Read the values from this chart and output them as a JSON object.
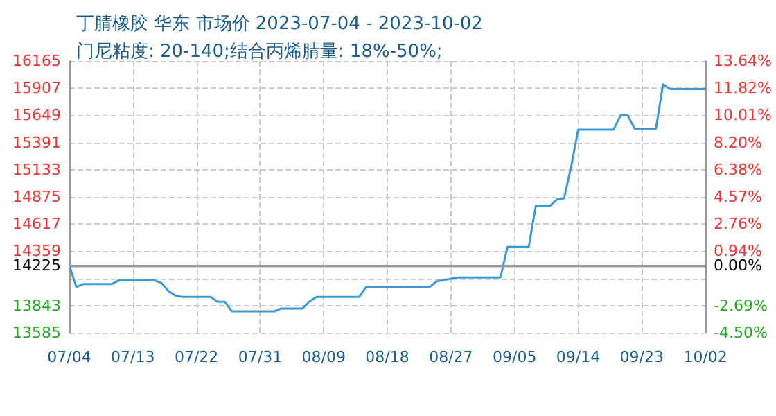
{
  "chart_data": {
    "type": "line",
    "title": "丁腈橡胶 华东 市场价 2023-07-04 - 2023-10-02",
    "subtitle": "门尼粘度: 20-140;结合丙烯腈量: 18%-50%;",
    "x": [
      "2023-07-04",
      "2023-07-05",
      "2023-07-06",
      "2023-07-10",
      "2023-07-11",
      "2023-07-16",
      "2023-07-17",
      "2023-07-18",
      "2023-07-19",
      "2023-07-20",
      "2023-07-24",
      "2023-07-25",
      "2023-07-26",
      "2023-07-27",
      "2023-08-02",
      "2023-08-03",
      "2023-08-06",
      "2023-08-07",
      "2023-08-08",
      "2023-08-14",
      "2023-08-15",
      "2023-08-24",
      "2023-08-25",
      "2023-08-28",
      "2023-09-03",
      "2023-09-04",
      "2023-09-07",
      "2023-09-08",
      "2023-09-10",
      "2023-09-11",
      "2023-09-12",
      "2023-09-13",
      "2023-09-14",
      "2023-09-19",
      "2023-09-20",
      "2023-09-21",
      "2023-09-22",
      "2023-09-25",
      "2023-09-26",
      "2023-09-27",
      "2023-10-02"
    ],
    "series": [
      {
        "color": "#3a9ad9",
        "values": [
          14225,
          14020,
          14047,
          14047,
          14083,
          14083,
          14060,
          13983,
          13938,
          13925,
          13925,
          13880,
          13880,
          13789,
          13789,
          13816,
          13816,
          13884,
          13925,
          13925,
          14020,
          14020,
          14074,
          14110,
          14110,
          14400,
          14400,
          14789,
          14789,
          14852,
          14861,
          15160,
          15513,
          15513,
          15649,
          15649,
          15522,
          15522,
          15943,
          15898,
          15898
        ]
      }
    ],
    "xlim": [
      "2023-07-04",
      "2023-10-02"
    ],
    "xticks": [
      {
        "value": "2023-07-04",
        "label": "07/04"
      },
      {
        "value": "2023-07-13",
        "label": "07/13"
      },
      {
        "value": "2023-07-22",
        "label": "07/22"
      },
      {
        "value": "2023-07-31",
        "label": "07/31"
      },
      {
        "value": "2023-08-09",
        "label": "08/09"
      },
      {
        "value": "2023-08-18",
        "label": "08/18"
      },
      {
        "value": "2023-08-27",
        "label": "08/27"
      },
      {
        "value": "2023-09-05",
        "label": "09/05"
      },
      {
        "value": "2023-09-14",
        "label": "09/14"
      },
      {
        "value": "2023-09-23",
        "label": "09/23"
      },
      {
        "value": "2023-10-02",
        "label": "10/02"
      }
    ],
    "ylim": [
      13585,
      16165
    ],
    "yticks": [
      13585,
      13843,
      {
        "value": 14101,
        "label": null
      },
      14225,
      14359,
      14617,
      14875,
      15133,
      15391,
      15649,
      15907,
      16165
    ],
    "y2lim": [
      -4.5,
      13.64
    ],
    "y2ticks": [
      {
        "value": -4.5,
        "label": "-4.50%"
      },
      {
        "value": -2.69,
        "label": "-2.69%"
      },
      {
        "value": 0,
        "label": "0.00%"
      },
      {
        "value": 0.94,
        "label": "0.94%"
      },
      {
        "value": 2.76,
        "label": "2.76%"
      },
      {
        "value": 4.57,
        "label": "4.57%"
      },
      {
        "value": 6.38,
        "label": "6.38%"
      },
      {
        "value": 8.2,
        "label": "8.20%"
      },
      {
        "value": 10.01,
        "label": "10.01%"
      },
      {
        "value": 11.82,
        "label": "11.82%"
      },
      {
        "value": 13.64,
        "label": "13.64%"
      }
    ],
    "ref_lines": [
      {
        "axis": "y",
        "value": 14225,
        "color": "#999999"
      }
    ],
    "grid": true,
    "marker": "none",
    "line_style": "solid"
  }
}
